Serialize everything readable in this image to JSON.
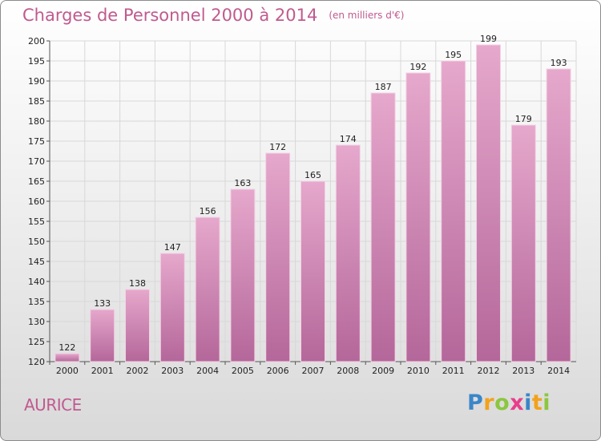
{
  "title": "Charges de Personnel 2000 à 2014",
  "title_unit": "(en milliers d'€)",
  "commune": "AURICE",
  "logo": "Proxiti",
  "colors": {
    "bar_top": "#e6a8cc",
    "bar_bottom": "#b4679a",
    "text_accent": "#c05a8f"
  },
  "chart_data": {
    "type": "bar",
    "title": "Charges de Personnel 2000 à 2014",
    "ylabel": "(en milliers d'€)",
    "categories": [
      "2000",
      "2001",
      "2002",
      "2003",
      "2004",
      "2005",
      "2006",
      "2007",
      "2008",
      "2009",
      "2010",
      "2011",
      "2012",
      "2013",
      "2014"
    ],
    "values": [
      122,
      133,
      138,
      147,
      156,
      163,
      172,
      165,
      174,
      187,
      192,
      195,
      199,
      179,
      193
    ],
    "ylim": [
      120,
      200
    ],
    "yticks": [
      120,
      125,
      130,
      135,
      140,
      145,
      150,
      155,
      160,
      165,
      170,
      175,
      180,
      185,
      190,
      195,
      200
    ],
    "grid": true
  }
}
